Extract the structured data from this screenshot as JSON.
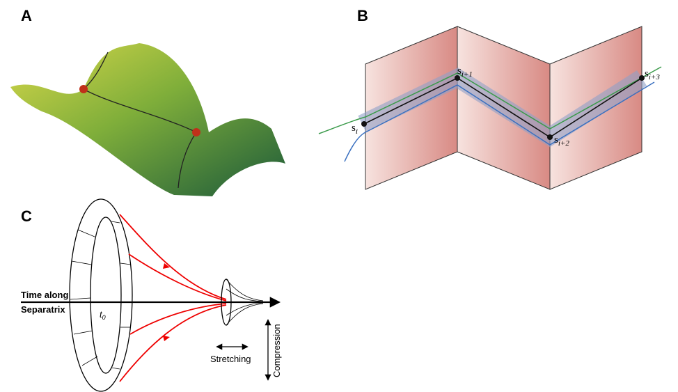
{
  "panels": [
    {
      "label": "A"
    },
    {
      "label": "B",
      "points": [
        {
          "base": "s",
          "subscript": "i"
        },
        {
          "base": "s",
          "subscript": "i+1"
        },
        {
          "base": "s",
          "subscript": "i+2"
        },
        {
          "base": "s",
          "subscript": "i+3"
        }
      ]
    },
    {
      "label": "C",
      "axis_label": [
        "Time along",
        "Separatrix"
      ],
      "time_label": {
        "base": "t",
        "subscript": "0"
      },
      "stretching": "Stretching",
      "compression": "Compression"
    }
  ]
}
